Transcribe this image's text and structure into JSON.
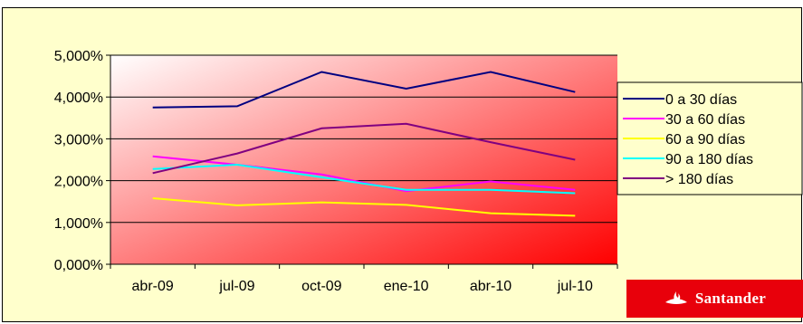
{
  "colors": {
    "background": "#ffffcc",
    "plot_gradient": [
      "#ffffff",
      "#ff0000"
    ],
    "logo_bg": "#e8000b"
  },
  "logo": {
    "text": "Santander",
    "icon": "santander-flame-icon"
  },
  "chart_data": {
    "type": "line",
    "title": "",
    "xlabel": "",
    "ylabel": "",
    "categories": [
      "abr-09",
      "jul-09",
      "oct-09",
      "ene-10",
      "abr-10",
      "jul-10"
    ],
    "y_ticks": [
      "0,000%",
      "1,000%",
      "2,000%",
      "3,000%",
      "4,000%",
      "5,000%"
    ],
    "ylim": [
      0,
      5
    ],
    "grid": true,
    "legend_position": "right",
    "series": [
      {
        "name": "0 a 30 días",
        "color": "#000080",
        "values": [
          3.75,
          3.78,
          4.6,
          4.2,
          4.6,
          4.12
        ]
      },
      {
        "name": "30 a 60 días",
        "color": "#ff00ff",
        "values": [
          2.58,
          2.38,
          2.15,
          1.75,
          1.98,
          1.78
        ]
      },
      {
        "name": "60 a 90 días",
        "color": "#ffff00",
        "values": [
          1.58,
          1.41,
          1.48,
          1.42,
          1.22,
          1.16
        ]
      },
      {
        "name": "90 a 180 días",
        "color": "#00ffff",
        "values": [
          2.28,
          2.38,
          2.08,
          1.78,
          1.78,
          1.7
        ]
      },
      {
        "name": "> 180 días",
        "color": "#800080",
        "values": [
          2.18,
          2.65,
          3.25,
          3.36,
          2.92,
          2.5
        ]
      }
    ]
  }
}
